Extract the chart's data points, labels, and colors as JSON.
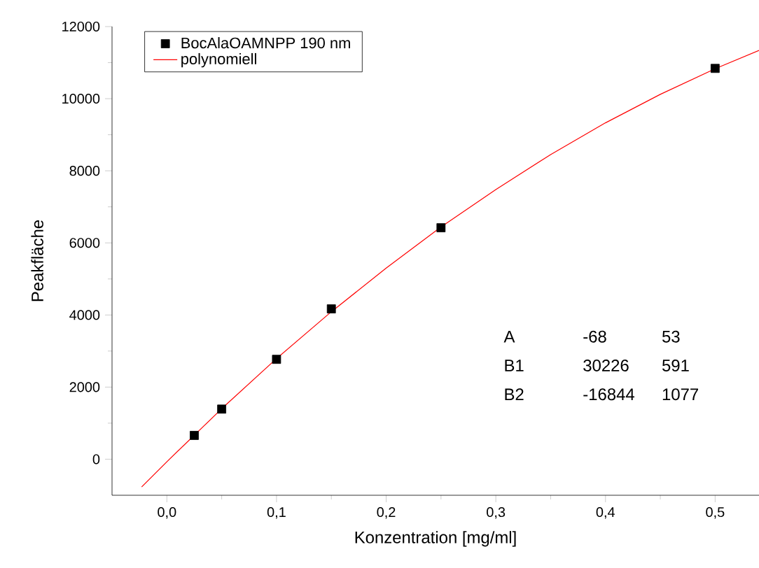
{
  "chart_data": {
    "type": "scatter",
    "xlabel": "Konzentration [mg/ml]",
    "ylabel": "Peakfläche",
    "series": [
      {
        "name": "BocAlaOAMNPP 190 nm",
        "color": "#000000",
        "marker": "square",
        "x": [
          0.025,
          0.05,
          0.1,
          0.15,
          0.25,
          0.5
        ],
        "values": [
          660,
          1390,
          2770,
          4170,
          6420,
          10840
        ]
      },
      {
        "name": "polynomiell",
        "type": "line",
        "color": "#ff0000",
        "marker": "none",
        "line_style": "solid",
        "x": [
          -0.023,
          0,
          0.05,
          0.1,
          0.15,
          0.2,
          0.25,
          0.3,
          0.35,
          0.4,
          0.45,
          0.5,
          0.54
        ],
        "values": [
          -770,
          -70,
          1400,
          2790,
          4090,
          5300,
          6440,
          7480,
          8450,
          9330,
          10120,
          10830,
          11340
        ]
      }
    ],
    "xlim": [
      -0.05,
      0.54
    ],
    "ylim": [
      -1000,
      12000
    ],
    "xticks": [
      {
        "value": 0,
        "label": "0,0"
      },
      {
        "value": 0.1,
        "label": "0,1"
      },
      {
        "value": 0.2,
        "label": "0,2"
      },
      {
        "value": 0.3,
        "label": "0,3"
      },
      {
        "value": 0.4,
        "label": "0,4"
      },
      {
        "value": 0.5,
        "label": "0,5"
      }
    ],
    "yticks": [
      0,
      2000,
      4000,
      6000,
      8000,
      10000,
      12000
    ],
    "grid": false,
    "legend": "top left",
    "annotations": [
      "A",
      "-68",
      "53",
      "B1",
      "30226",
      "591",
      "B2",
      "-16844",
      "1077"
    ]
  }
}
